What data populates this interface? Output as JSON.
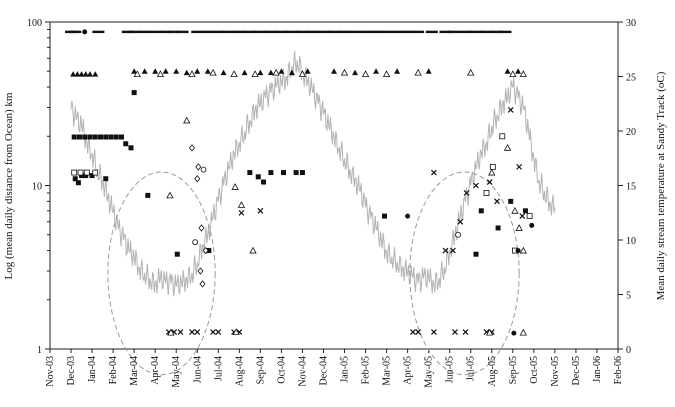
{
  "chart_data": {
    "type": "scatter",
    "title": "",
    "xlabel": "",
    "ylabel_left": "Log (mean daily distance from Ocean) km",
    "ylabel_right": "Mean daily stream temperature at Sandy Track (oC)",
    "x_tick_labels": [
      "Nov-03",
      "Dec-03",
      "Jan-04",
      "Feb-04",
      "Mar-04",
      "Apr-04",
      "May-04",
      "Jun-04",
      "Jul-04",
      "Aug-04",
      "Sep-04",
      "Oct-04",
      "Nov-04",
      "Dec-04",
      "Jan-05",
      "Feb-05",
      "Mar-05",
      "Apr-05",
      "May-05",
      "Jun-05",
      "Jul-05",
      "Aug-05",
      "Sep-05",
      "Oct-05",
      "Nov-05",
      "Dec-05",
      "Jan-06",
      "Feb-06"
    ],
    "y_left": {
      "scale": "log",
      "range": [
        1,
        100
      ],
      "ticks": [
        "1",
        "10",
        "100"
      ]
    },
    "y_right": {
      "scale": "linear",
      "range": [
        0,
        30
      ],
      "ticks": [
        "0",
        "5",
        "10",
        "15",
        "20",
        "25",
        "30"
      ]
    },
    "temperature_series": {
      "axis": "right",
      "color": "#b3b3b3",
      "points": [
        [
          2.0,
          22.0
        ],
        [
          2.5,
          21.0
        ],
        [
          3.0,
          20.5
        ],
        [
          3.5,
          19.0
        ],
        [
          4.0,
          18.0
        ],
        [
          4.5,
          16.5
        ],
        [
          5.0,
          15.5
        ],
        [
          5.5,
          14.0
        ],
        [
          6.0,
          12.5
        ],
        [
          6.5,
          11.0
        ],
        [
          7.0,
          10.0
        ],
        [
          7.5,
          9.0
        ],
        [
          8.0,
          8.5
        ],
        [
          8.5,
          7.5
        ],
        [
          9.0,
          7.0
        ],
        [
          9.5,
          6.5
        ],
        [
          10.0,
          6.0
        ],
        [
          10.5,
          6.5
        ],
        [
          11.0,
          6.0
        ],
        [
          11.5,
          6.0
        ],
        [
          12.0,
          5.7
        ],
        [
          12.5,
          6.0
        ],
        [
          13.0,
          6.5
        ],
        [
          13.5,
          7.0
        ],
        [
          14.0,
          8.0
        ],
        [
          14.5,
          9.5
        ],
        [
          15.0,
          10.5
        ],
        [
          15.5,
          12.0
        ],
        [
          16.0,
          13.5
        ],
        [
          16.5,
          15.0
        ],
        [
          17.0,
          16.5
        ],
        [
          17.5,
          18.0
        ],
        [
          18.0,
          19.0
        ],
        [
          18.5,
          20.0
        ],
        [
          19.0,
          21.0
        ],
        [
          19.5,
          22.0
        ],
        [
          20.0,
          22.5
        ],
        [
          20.5,
          23.0
        ],
        [
          21.0,
          23.5
        ],
        [
          21.5,
          24.0
        ],
        [
          22.0,
          24.5
        ],
        [
          22.5,
          25.0
        ],
        [
          23.0,
          26.0
        ],
        [
          23.5,
          26.5
        ],
        [
          24.0,
          25.5
        ],
        [
          24.5,
          24.5
        ],
        [
          25.0,
          23.5
        ],
        [
          25.5,
          22.5
        ],
        [
          26.0,
          21.5
        ],
        [
          26.5,
          20.5
        ],
        [
          27.0,
          19.5
        ],
        [
          27.5,
          18.5
        ],
        [
          28.0,
          17.5
        ],
        [
          28.5,
          16.5
        ],
        [
          29.0,
          15.5
        ],
        [
          29.5,
          14.5
        ],
        [
          30.0,
          13.0
        ],
        [
          30.5,
          12.0
        ],
        [
          31.0,
          11.0
        ],
        [
          31.5,
          10.0
        ],
        [
          32.0,
          9.0
        ],
        [
          32.5,
          8.5
        ],
        [
          33.0,
          8.0
        ],
        [
          33.5,
          7.5
        ],
        [
          34.0,
          7.0
        ],
        [
          34.5,
          6.5
        ],
        [
          35.0,
          6.0
        ],
        [
          35.5,
          6.5
        ],
        [
          36.0,
          6.5
        ],
        [
          36.5,
          6.0
        ],
        [
          37.0,
          6.5
        ],
        [
          37.5,
          7.5
        ],
        [
          38.0,
          9.0
        ],
        [
          38.5,
          10.5
        ],
        [
          39.0,
          12.0
        ],
        [
          39.5,
          13.5
        ],
        [
          40.0,
          15.0
        ],
        [
          40.5,
          16.5
        ],
        [
          41.0,
          18.0
        ],
        [
          41.5,
          19.0
        ],
        [
          42.0,
          20.5
        ],
        [
          42.5,
          21.5
        ],
        [
          43.0,
          22.5
        ],
        [
          43.5,
          23.0
        ],
        [
          44.0,
          24.0
        ],
        [
          44.5,
          23.0
        ],
        [
          45.0,
          22.0
        ],
        [
          45.5,
          20.0
        ],
        [
          46.0,
          17.5
        ],
        [
          46.5,
          15.5
        ],
        [
          47.0,
          14.5
        ],
        [
          47.5,
          13.5
        ],
        [
          48.0,
          13.0
        ]
      ]
    },
    "marker_series": [
      {
        "symbol": "filled-triangle",
        "axis": "left",
        "points": [
          [
            2.2,
            48
          ],
          [
            2.6,
            48
          ],
          [
            3.0,
            48
          ],
          [
            3.4,
            48
          ],
          [
            3.8,
            48
          ],
          [
            4.3,
            48
          ],
          [
            8.0,
            50
          ],
          [
            9.0,
            50
          ],
          [
            10.0,
            50
          ],
          [
            11.0,
            50
          ],
          [
            12.0,
            50
          ],
          [
            13.0,
            49
          ],
          [
            14.0,
            50
          ],
          [
            15.0,
            50
          ],
          [
            16.5,
            49
          ],
          [
            18.5,
            49
          ],
          [
            20.0,
            49
          ],
          [
            21.0,
            49
          ],
          [
            22.0,
            50
          ],
          [
            23.0,
            49
          ],
          [
            24.5,
            50
          ],
          [
            27.0,
            50
          ],
          [
            29.0,
            49
          ],
          [
            31.0,
            50
          ],
          [
            33.0,
            50
          ],
          [
            36.0,
            50
          ],
          [
            43.5,
            50
          ],
          [
            44.5,
            50
          ]
        ]
      },
      {
        "symbol": "open-triangle",
        "axis": "left",
        "points": [
          [
            8.3,
            48
          ],
          [
            10.5,
            48
          ],
          [
            13.5,
            48
          ],
          [
            15.5,
            49
          ],
          [
            17.5,
            48
          ],
          [
            19.5,
            48
          ],
          [
            21.5,
            49
          ],
          [
            24.0,
            48
          ],
          [
            28.0,
            49
          ],
          [
            30.0,
            48
          ],
          [
            32.0,
            48
          ],
          [
            35.0,
            49
          ],
          [
            40.0,
            49
          ],
          [
            44.0,
            48
          ],
          [
            45.0,
            48
          ],
          [
            11.4,
            8.7
          ],
          [
            13.0,
            25
          ],
          [
            17.6,
            9.8
          ],
          [
            18.2,
            7.6
          ],
          [
            19.3,
            4.0
          ],
          [
            42.0,
            12
          ],
          [
            43.5,
            17
          ],
          [
            44.2,
            7.0
          ],
          [
            44.6,
            5.5
          ],
          [
            45.0,
            4.0
          ]
        ]
      },
      {
        "symbol": "filled-square",
        "axis": "left",
        "points": [
          [
            2.3,
            19.8
          ],
          [
            2.8,
            19.8
          ],
          [
            3.3,
            19.8
          ],
          [
            3.8,
            19.8
          ],
          [
            4.3,
            19.8
          ],
          [
            4.8,
            19.8
          ],
          [
            5.3,
            19.8
          ],
          [
            5.8,
            19.8
          ],
          [
            6.3,
            19.8
          ],
          [
            6.8,
            19.8
          ],
          [
            7.2,
            18.0
          ],
          [
            7.7,
            17.0
          ],
          [
            2.4,
            11.0
          ],
          [
            2.7,
            10.4
          ],
          [
            3.0,
            11.5
          ],
          [
            3.4,
            11.5
          ],
          [
            4.0,
            11.5
          ],
          [
            5.3,
            11.0
          ],
          [
            8.0,
            37
          ],
          [
            9.3,
            8.7
          ],
          [
            12.1,
            3.8
          ],
          [
            15.1,
            4.0
          ],
          [
            19.0,
            12
          ],
          [
            19.8,
            11.3
          ],
          [
            20.3,
            10.5
          ],
          [
            21.0,
            12
          ],
          [
            22.2,
            12
          ],
          [
            23.4,
            12
          ],
          [
            24.0,
            12
          ],
          [
            31.8,
            6.5
          ],
          [
            40.5,
            3.8
          ],
          [
            41.0,
            7.0
          ],
          [
            42.6,
            5.5
          ],
          [
            43.8,
            8.0
          ],
          [
            45.2,
            7.0
          ]
        ]
      },
      {
        "symbol": "open-square",
        "axis": "left",
        "points": [
          [
            2.3,
            12.0
          ],
          [
            2.9,
            12.0
          ],
          [
            3.5,
            12.0
          ],
          [
            4.3,
            12.0
          ],
          [
            41.5,
            9.0
          ],
          [
            42.1,
            13.0
          ],
          [
            43.0,
            20.0
          ],
          [
            44.2,
            4.0
          ],
          [
            45.6,
            6.5
          ]
        ]
      },
      {
        "symbol": "cross",
        "axis": "left",
        "points": [
          [
            18.2,
            6.8
          ],
          [
            20.0,
            7.0
          ],
          [
            36.5,
            12.0
          ],
          [
            37.6,
            4.0
          ],
          [
            38.3,
            4.0
          ],
          [
            39.0,
            6.0
          ],
          [
            39.6,
            9.0
          ],
          [
            40.5,
            10.0
          ],
          [
            41.8,
            10.5
          ],
          [
            42.5,
            8.0
          ],
          [
            43.8,
            29.0
          ],
          [
            44.6,
            13.0
          ],
          [
            44.9,
            6.5
          ],
          [
            11.3,
            1.27
          ],
          [
            11.8,
            1.27
          ],
          [
            12.4,
            1.27
          ],
          [
            13.5,
            1.27
          ],
          [
            14.0,
            1.27
          ],
          [
            15.5,
            1.27
          ],
          [
            16.0,
            1.27
          ],
          [
            17.5,
            1.27
          ],
          [
            18.0,
            1.27
          ],
          [
            34.5,
            1.27
          ],
          [
            35.0,
            1.27
          ],
          [
            36.5,
            1.27
          ],
          [
            38.5,
            1.27
          ],
          [
            39.5,
            1.27
          ],
          [
            41.5,
            1.27
          ],
          [
            42.0,
            1.27
          ]
        ]
      },
      {
        "symbol": "open-diamond",
        "axis": "left",
        "points": [
          [
            13.5,
            17
          ],
          [
            14.0,
            11
          ],
          [
            14.4,
            5.5
          ],
          [
            14.8,
            4.0
          ],
          [
            14.1,
            13
          ],
          [
            14.3,
            3.0
          ],
          [
            14.5,
            2.5
          ]
        ]
      },
      {
        "symbol": "filled-dot",
        "axis": "left",
        "points": [
          [
            3.3,
            87
          ],
          [
            34.0,
            6.5
          ],
          [
            44.1,
            1.25
          ],
          [
            44.5,
            4.0
          ],
          [
            45.8,
            5.7
          ]
        ]
      },
      {
        "symbol": "open-circle",
        "axis": "left",
        "points": [
          [
            13.8,
            4.5
          ],
          [
            14.6,
            12.5
          ],
          [
            38.8,
            5.0
          ]
        ]
      },
      {
        "symbol": "dash",
        "axis": "left",
        "points": [
          [
            2.0,
            87
          ],
          [
            2.4,
            87
          ],
          [
            4.6,
            87
          ],
          [
            7.4,
            87
          ],
          [
            8.0,
            87
          ],
          [
            9.0,
            87
          ],
          [
            10.0,
            87
          ],
          [
            11.0,
            87
          ],
          [
            11.8,
            87
          ],
          [
            12.6,
            87
          ],
          [
            14.0,
            87
          ],
          [
            15.0,
            87
          ],
          [
            16.0,
            87
          ],
          [
            17.0,
            87
          ],
          [
            18.0,
            87
          ],
          [
            19.0,
            87
          ],
          [
            20.0,
            87
          ],
          [
            21.0,
            87
          ],
          [
            22.0,
            87
          ],
          [
            23.0,
            87
          ],
          [
            24.0,
            87
          ],
          [
            25.0,
            87
          ],
          [
            26.0,
            87
          ],
          [
            27.0,
            87
          ],
          [
            28.0,
            87
          ],
          [
            29.0,
            87
          ],
          [
            30.0,
            87
          ],
          [
            31.0,
            87
          ],
          [
            32.0,
            87
          ],
          [
            33.0,
            87
          ],
          [
            34.0,
            87
          ],
          [
            35.0,
            87
          ],
          [
            36.3,
            87
          ],
          [
            37.6,
            87
          ],
          [
            38.4,
            87
          ],
          [
            39.5,
            87
          ],
          [
            40.5,
            87
          ],
          [
            41.5,
            87
          ],
          [
            42.5,
            87
          ],
          [
            43.3,
            87
          ]
        ]
      },
      {
        "symbol": "open-triangle",
        "axis": "left",
        "points": [
          [
            11.5,
            1.26
          ],
          [
            17.7,
            1.27
          ],
          [
            41.8,
            1.26
          ],
          [
            45.0,
            1.26
          ]
        ]
      }
    ],
    "annotations": [
      {
        "type": "dashed-ellipse",
        "cx": 10.6,
        "cy_km": 2.9,
        "rx_months": 2.55,
        "ry_log10": 0.62
      },
      {
        "type": "dashed-ellipse",
        "cx": 39.4,
        "cy_km": 2.9,
        "rx_months": 2.6,
        "ry_log10": 0.62
      }
    ],
    "legend": "none",
    "grid": false
  }
}
